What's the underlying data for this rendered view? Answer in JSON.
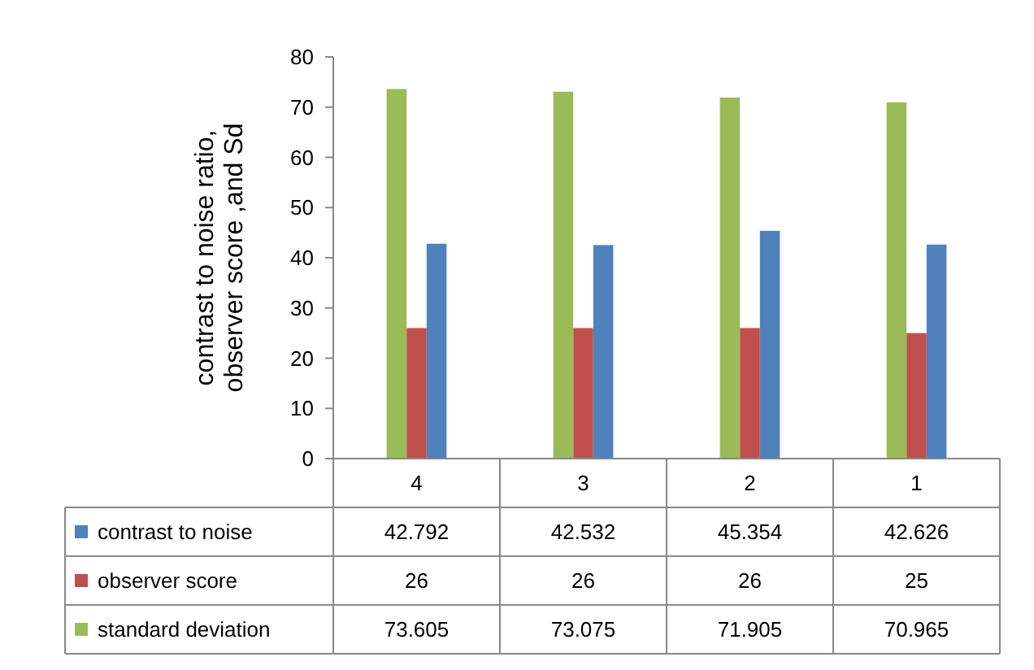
{
  "chart_data": {
    "type": "bar",
    "ylabel": "contrast to noise ratio, observer score ,and Sd",
    "categories": [
      "4",
      "3",
      "2",
      "1"
    ],
    "series": [
      {
        "name": "contrast to noise",
        "color": "#4f81bd",
        "values": [
          42.792,
          42.532,
          45.354,
          42.626
        ]
      },
      {
        "name": "observer score",
        "color": "#c0504d",
        "values": [
          26,
          26,
          26,
          25
        ]
      },
      {
        "name": "standard deviation",
        "color": "#9bbb59",
        "values": [
          73.605,
          73.075,
          71.905,
          70.965
        ]
      }
    ],
    "ylim": [
      0,
      80
    ],
    "yticks": [
      0,
      10,
      20,
      30,
      40,
      50,
      60,
      70,
      80
    ],
    "data_labels": true,
    "legend": "bottom",
    "grid": false
  }
}
